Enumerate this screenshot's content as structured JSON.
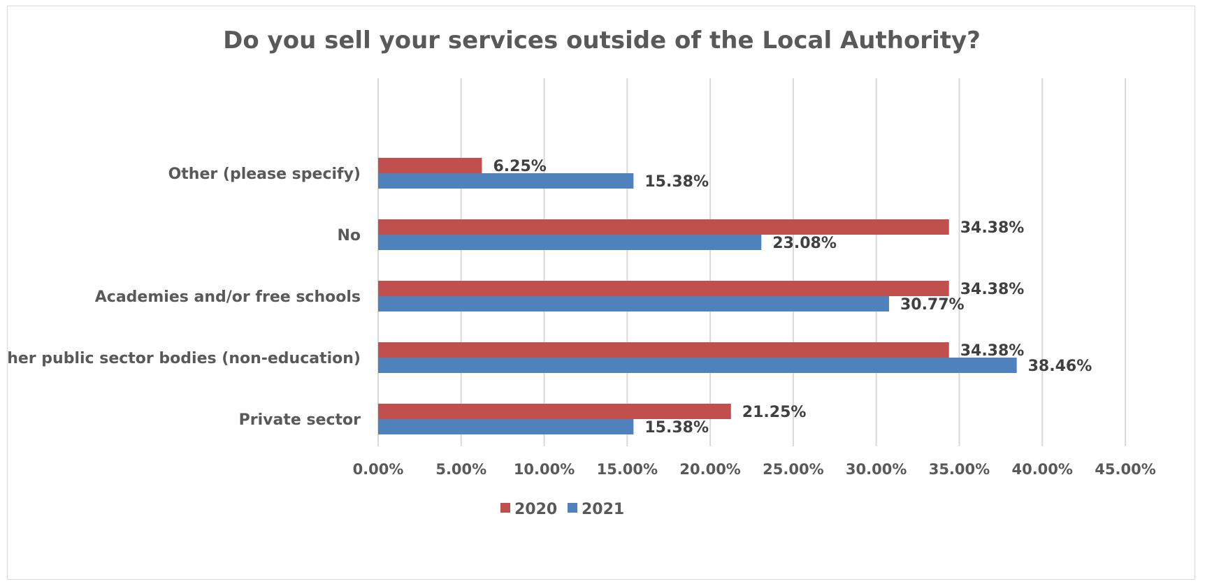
{
  "chart_data": {
    "type": "bar",
    "orientation": "horizontal",
    "title": "Do you sell your services outside of the Local Authority?",
    "xlabel": "",
    "ylabel": "",
    "categories": [
      "Other (please specify)",
      "No",
      "Academies and/or free schools",
      "Other public sector bodies (non-education)",
      "Private sector"
    ],
    "series": [
      {
        "name": "2020",
        "color": "#c0504d",
        "values": [
          6.25,
          34.38,
          34.38,
          34.38,
          21.25
        ],
        "labels": [
          "6.25%",
          "34.38%",
          "34.38%",
          "34.38%",
          "21.25%"
        ]
      },
      {
        "name": "2021",
        "color": "#4f81bd",
        "values": [
          15.38,
          23.08,
          30.77,
          38.46,
          15.38
        ],
        "labels": [
          "15.38%",
          "23.08%",
          "30.77%",
          "38.46%",
          "15.38%"
        ]
      }
    ],
    "xlim": [
      0,
      45
    ],
    "xticks": [
      0,
      5,
      10,
      15,
      20,
      25,
      30,
      35,
      40,
      45
    ],
    "xtick_labels": [
      "0.00%",
      "5.00%",
      "10.00%",
      "15.00%",
      "20.00%",
      "25.00%",
      "30.00%",
      "35.00%",
      "40.00%",
      "45.00%"
    ],
    "grid": "vertical",
    "legend_position": "bottom",
    "colors": {
      "grid": "#d9d9d9",
      "text": "#595959",
      "data_label": "#404040"
    }
  }
}
